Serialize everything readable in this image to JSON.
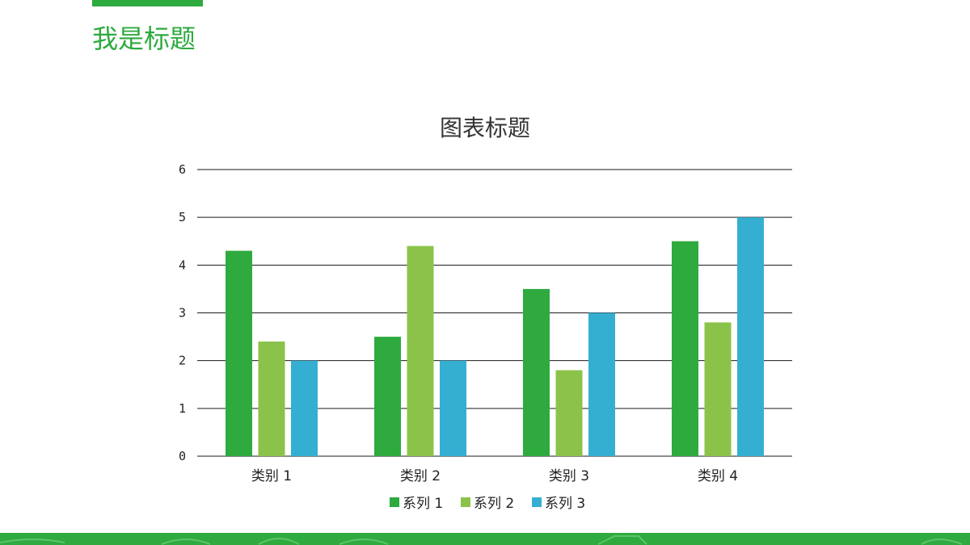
{
  "slide": {
    "title": "我是标题",
    "accent_color": "#2eaa3f"
  },
  "chart_data": {
    "type": "bar",
    "title": "图表标题",
    "categories": [
      "类别 1",
      "类别 2",
      "类别 3",
      "类别 4"
    ],
    "series": [
      {
        "name": "系列 1",
        "color": "#2eaa3f",
        "values": [
          4.3,
          2.5,
          3.5,
          4.5
        ]
      },
      {
        "name": "系列 2",
        "color": "#8bc34a",
        "values": [
          2.4,
          4.4,
          1.8,
          2.8
        ]
      },
      {
        "name": "系列 3",
        "color": "#35afd1",
        "values": [
          2,
          2,
          3,
          5
        ]
      }
    ],
    "ylim": [
      0,
      6
    ],
    "yticks": [
      "0",
      "1",
      "2",
      "3",
      "4",
      "5",
      "6"
    ],
    "grid": true,
    "legend_position": "bottom"
  }
}
